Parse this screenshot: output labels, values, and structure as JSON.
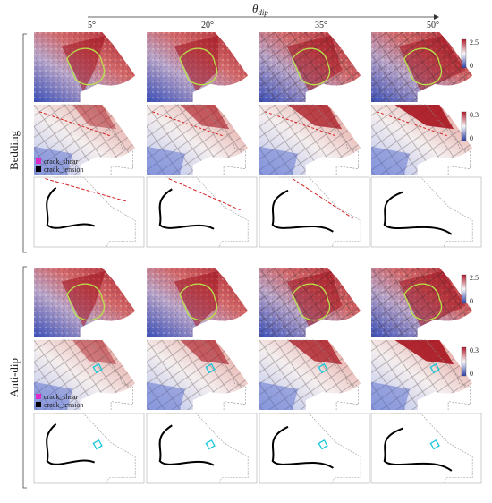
{
  "header": {
    "theta_symbol": "θ",
    "theta_subscript": "dip",
    "angles": [
      "5°",
      "20°",
      "35°",
      "50°"
    ]
  },
  "groups": [
    {
      "label": "Bedding",
      "colorbar_top": {
        "max": "2.5",
        "min": "0"
      },
      "colorbar_mid": {
        "max": "0.3",
        "min": "0"
      },
      "legend": [
        "crack_shear",
        "crack_tension"
      ]
    },
    {
      "label": "Anti-dip",
      "colorbar_top": {
        "max": "2.5",
        "min": "0"
      },
      "colorbar_mid": {
        "max": "0.3",
        "min": "0"
      },
      "legend": [
        "crack_shear",
        "crack_tension"
      ]
    }
  ],
  "colors": {
    "high": "#b2182b",
    "low": "#2c3fa8",
    "mid": "#f2efee",
    "slip_outline": "#b8e24a",
    "crack_shear": "#e02ac8",
    "crack_tension": "#000000",
    "marker": "#19c6d8"
  }
}
